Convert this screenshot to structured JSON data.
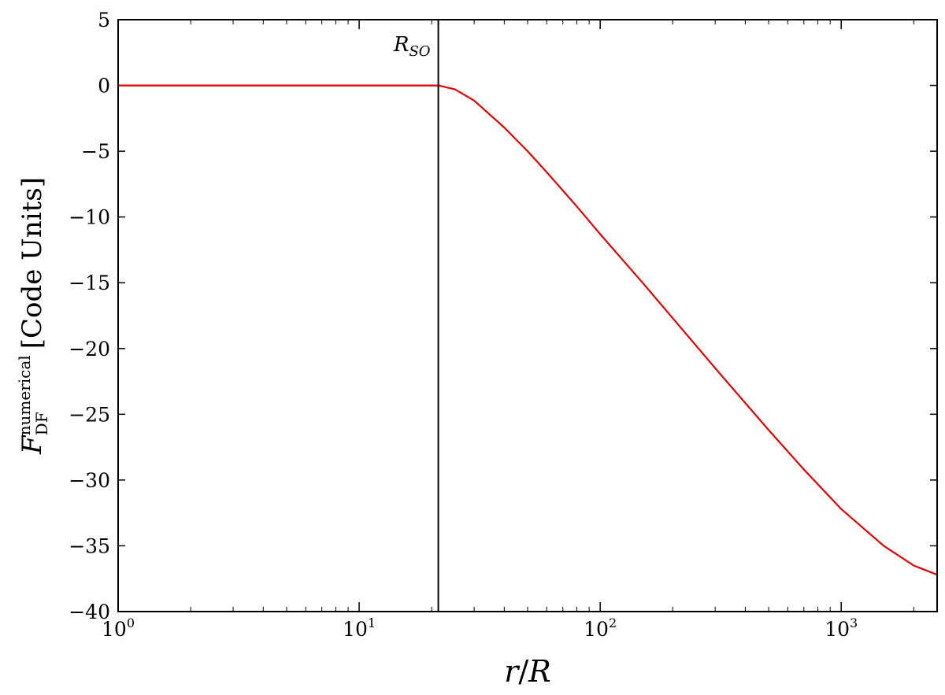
{
  "chart_data": {
    "type": "line",
    "xscale": "log",
    "xlim": [
      1,
      2500
    ],
    "ylim": [
      -40,
      5
    ],
    "xlabel": {
      "var1": "r",
      "slash": "/",
      "var2": "R"
    },
    "ylabel": {
      "symbol": "F",
      "sup": "numerical",
      "sub": "DF",
      "units": "[Code Units]"
    },
    "x_ticks": [
      {
        "value": 1,
        "base": "10",
        "exp": "0"
      },
      {
        "value": 10,
        "base": "10",
        "exp": "1"
      },
      {
        "value": 100,
        "base": "10",
        "exp": "2"
      },
      {
        "value": 1000,
        "base": "10",
        "exp": "3"
      }
    ],
    "y_ticks": [
      {
        "value": 5,
        "label": "5"
      },
      {
        "value": 0,
        "label": "0"
      },
      {
        "value": -5,
        "label": "−5"
      },
      {
        "value": -10,
        "label": "−10"
      },
      {
        "value": -15,
        "label": "−15"
      },
      {
        "value": -20,
        "label": "−20"
      },
      {
        "value": -25,
        "label": "−25"
      },
      {
        "value": -30,
        "label": "−30"
      },
      {
        "value": -35,
        "label": "−35"
      },
      {
        "value": -40,
        "label": "−40"
      }
    ],
    "vline": {
      "x": 21.3,
      "label_main": "R",
      "label_sub": "SO",
      "color": "#000000"
    },
    "series": [
      {
        "color": "#dd0000",
        "x": [
          1,
          2,
          5,
          10,
          15,
          21.3,
          25,
          30,
          40,
          50,
          60,
          80,
          100,
          150,
          200,
          300,
          500,
          700,
          1000,
          1500,
          2000,
          2500
        ],
        "y": [
          0,
          0,
          0,
          0,
          0,
          0,
          -0.3,
          -1.15,
          -3.2,
          -5.0,
          -6.6,
          -9.2,
          -11.3,
          -15.0,
          -17.7,
          -21.5,
          -26.2,
          -29.2,
          -32.2,
          -35.0,
          -36.5,
          -37.2
        ]
      }
    ]
  }
}
